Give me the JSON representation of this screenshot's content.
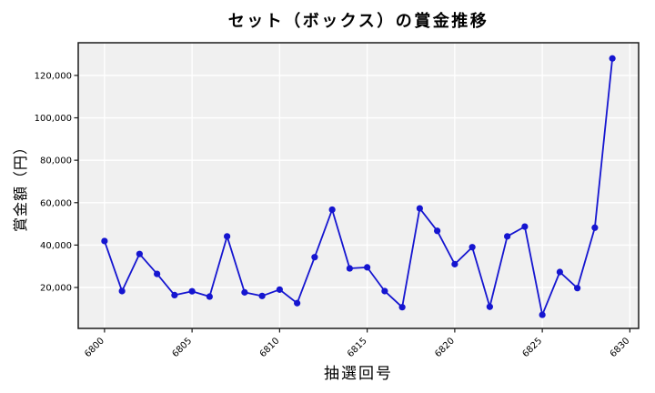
{
  "title": "セット（ボックス）の賞金推移",
  "chart_data": {
    "type": "line",
    "title": "セット（ボックス）の賞金推移",
    "xlabel": "抽選回号",
    "ylabel": "賞金額（円）",
    "x": [
      6800,
      6801,
      6802,
      6803,
      6804,
      6805,
      6806,
      6807,
      6808,
      6809,
      6810,
      6811,
      6812,
      6813,
      6814,
      6815,
      6816,
      6817,
      6818,
      6819,
      6820,
      6821,
      6822,
      6823,
      6824,
      6825,
      6826,
      6827,
      6828,
      6829
    ],
    "values": [
      41900,
      18300,
      35800,
      26400,
      16400,
      18200,
      15700,
      44100,
      17700,
      16000,
      19000,
      12600,
      34300,
      56700,
      29000,
      29500,
      18300,
      10700,
      57300,
      46700,
      31000,
      39000,
      10900,
      44100,
      48700,
      7100,
      27300,
      19700,
      48200,
      128000
    ],
    "xlim": [
      6798.5,
      6830.5
    ],
    "ylim": [
      700,
      135400
    ],
    "xticks": [
      6800,
      6805,
      6810,
      6815,
      6820,
      6825,
      6830
    ],
    "yticks": [
      20000,
      40000,
      60000,
      80000,
      100000,
      120000
    ],
    "ytick_labels": [
      "20,000",
      "40,000",
      "60,000",
      "80,000",
      "100,000",
      "120,000"
    ],
    "grid": true,
    "legend": "none",
    "series_name": "セット（ボックス）"
  },
  "colors": {
    "line": "#1515d0",
    "marker": "#1515d0",
    "plot_background": "#f0f0f0",
    "grid": "#ffffff",
    "axis": "#1a1a1a",
    "text": "#000000",
    "figure_background": "#ffffff"
  }
}
